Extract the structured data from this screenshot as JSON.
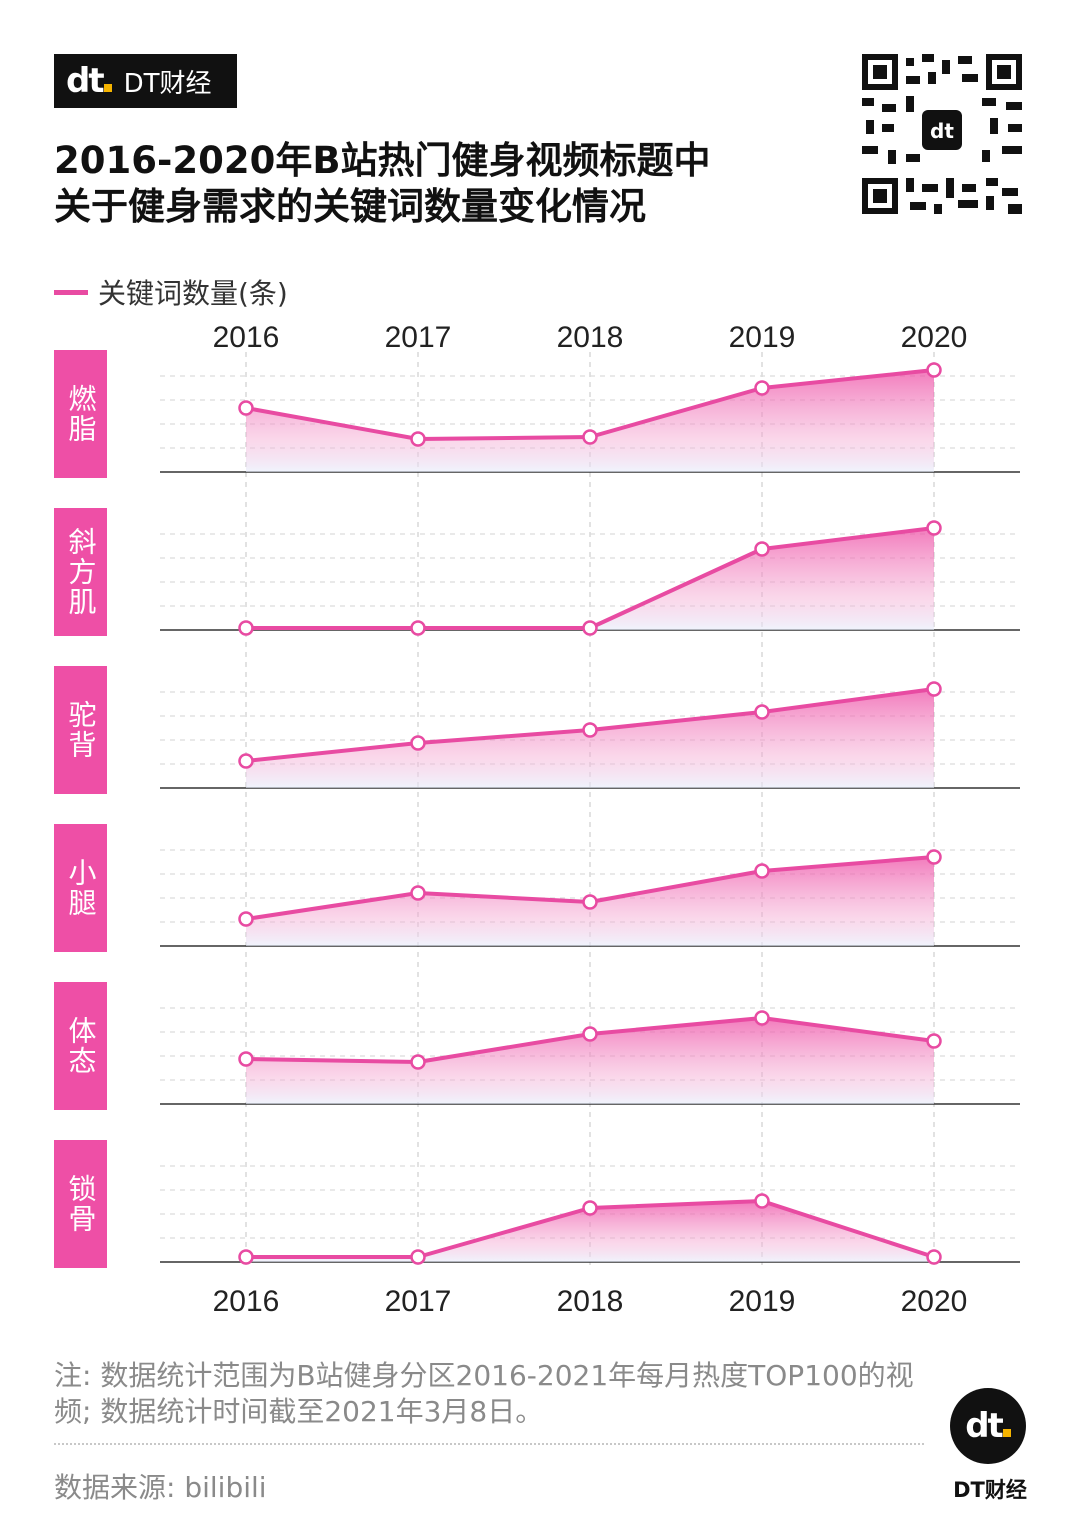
{
  "brand": {
    "name": "DT财经",
    "mark": "dt"
  },
  "title": {
    "line1": "2016-2020年B站热门健身视频标题中",
    "line2": "关于健身需求的关键词数量变化情况"
  },
  "legend": {
    "label": "关键词数量(条)"
  },
  "colors": {
    "accent": "#e84ba2",
    "badge": "#ee4fa6",
    "brand_dark": "#111111",
    "brand_yellow": "#f5b400"
  },
  "chart_data": {
    "type": "area",
    "x": [
      "2016",
      "2017",
      "2018",
      "2019",
      "2020"
    ],
    "panels_note": "small multiples, one per keyword, no y axis scale printed",
    "series": [
      {
        "name": "燃脂",
        "values": [
          0.62,
          0.31,
          0.33,
          0.82,
          1.0
        ]
      },
      {
        "name": "斜方肌",
        "values": [
          0.0,
          0.0,
          0.0,
          0.79,
          1.0
        ]
      },
      {
        "name": "驼背",
        "values": [
          0.25,
          0.43,
          0.56,
          0.74,
          0.97
        ]
      },
      {
        "name": "小腿",
        "values": [
          0.25,
          0.51,
          0.42,
          0.73,
          0.87
        ]
      },
      {
        "name": "体态",
        "values": [
          0.43,
          0.4,
          0.68,
          0.84,
          0.61
        ]
      },
      {
        "name": "锁骨",
        "values": [
          0.03,
          0.03,
          0.52,
          0.59,
          0.03
        ]
      }
    ],
    "grid": true,
    "legend_position": "top-left"
  },
  "note": "注: 数据统计范围为B站健身分区2016-2021年每月热度TOP100的视频; 数据统计时间截至2021年3月8日。",
  "source": "数据来源: bilibili",
  "footer_logo": {
    "mark": "dt",
    "name": "DT财经"
  }
}
